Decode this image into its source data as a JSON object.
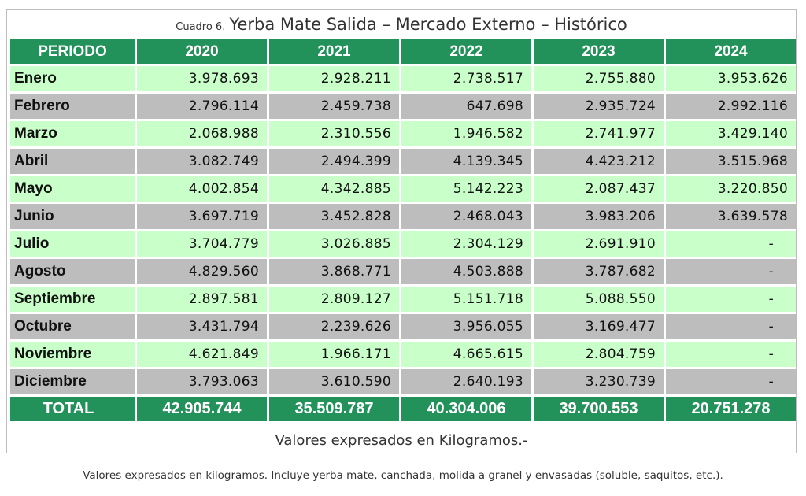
{
  "title": {
    "prefix": "Cuadro 6.",
    "main": "Yerba Mate Salida  – Mercado Externo – Histórico"
  },
  "table": {
    "headers": [
      "PERIODO",
      "2020",
      "2021",
      "2022",
      "2023",
      "2024"
    ],
    "rows": [
      {
        "label": "Enero",
        "values": [
          "3.978.693",
          "2.928.211",
          "2.738.517",
          "2.755.880",
          "3.953.626"
        ]
      },
      {
        "label": "Febrero",
        "values": [
          "2.796.114",
          "2.459.738",
          "647.698",
          "2.935.724",
          "2.992.116"
        ]
      },
      {
        "label": "Marzo",
        "values": [
          "2.068.988",
          "2.310.556",
          "1.946.582",
          "2.741.977",
          "3.429.140"
        ]
      },
      {
        "label": "Abril",
        "values": [
          "3.082.749",
          "2.494.399",
          "4.139.345",
          "4.423.212",
          "3.515.968"
        ]
      },
      {
        "label": "Mayo",
        "values": [
          "4.002.854",
          "4.342.885",
          "5.142.223",
          "2.087.437",
          "3.220.850"
        ]
      },
      {
        "label": "Junio",
        "values": [
          "3.697.719",
          "3.452.828",
          "2.468.043",
          "3.983.206",
          "3.639.578"
        ]
      },
      {
        "label": "Julio",
        "values": [
          "3.704.779",
          "3.026.885",
          "2.304.129",
          "2.691.910",
          "-"
        ]
      },
      {
        "label": "Agosto",
        "values": [
          "4.829.560",
          "3.868.771",
          "4.503.888",
          "3.787.682",
          "-"
        ]
      },
      {
        "label": "Septiembre",
        "values": [
          "2.897.581",
          "2.809.127",
          "5.151.718",
          "5.088.550",
          "-"
        ]
      },
      {
        "label": "Octubre",
        "values": [
          "3.431.794",
          "2.239.626",
          "3.956.055",
          "3.169.477",
          "-"
        ]
      },
      {
        "label": "Noviembre",
        "values": [
          "4.621.849",
          "1.966.171",
          "4.665.615",
          "2.804.759",
          "-"
        ]
      },
      {
        "label": "Diciembre",
        "values": [
          "3.793.063",
          "3.610.590",
          "2.640.193",
          "3.230.739",
          "-"
        ]
      }
    ],
    "total": {
      "label": "TOTAL",
      "values": [
        "42.905.744",
        "35.509.787",
        "40.304.006",
        "39.700.553",
        "20.751.278"
      ]
    }
  },
  "units_note": "Valores expresados en Kilogramos.-",
  "footnote": "Valores expresados en kilogramos. Incluye yerba mate, canchada, molida a granel y envasadas (soluble, saquitos, etc.).",
  "colors": {
    "header_green": "#23915a",
    "row_light": "#c9ffc9",
    "row_gray": "#bdbdbd"
  }
}
